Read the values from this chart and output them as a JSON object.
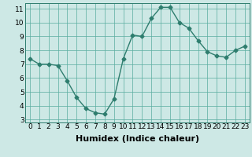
{
  "x": [
    0,
    1,
    2,
    3,
    4,
    5,
    6,
    7,
    8,
    9,
    10,
    11,
    12,
    13,
    14,
    15,
    16,
    17,
    18,
    19,
    20,
    21,
    22,
    23
  ],
  "y": [
    7.4,
    7.0,
    7.0,
    6.9,
    5.8,
    4.6,
    3.8,
    3.5,
    3.4,
    4.5,
    7.4,
    9.1,
    9.0,
    10.3,
    11.1,
    11.1,
    10.0,
    9.6,
    8.7,
    7.9,
    7.6,
    7.5,
    8.0,
    8.3
  ],
  "xlabel": "Humidex (Indice chaleur)",
  "ylim": [
    2.8,
    11.4
  ],
  "xlim": [
    -0.5,
    23.5
  ],
  "yticks": [
    3,
    4,
    5,
    6,
    7,
    8,
    9,
    10,
    11
  ],
  "xticks": [
    0,
    1,
    2,
    3,
    4,
    5,
    6,
    7,
    8,
    9,
    10,
    11,
    12,
    13,
    14,
    15,
    16,
    17,
    18,
    19,
    20,
    21,
    22,
    23
  ],
  "line_color": "#2e7d6e",
  "marker_color": "#2e7d6e",
  "bg_color": "#cde8e5",
  "grid_color": "#5aada0",
  "xlabel_fontsize": 8,
  "tick_fontsize": 6.5,
  "marker": "D",
  "marker_size": 2.5,
  "line_width": 1.0
}
